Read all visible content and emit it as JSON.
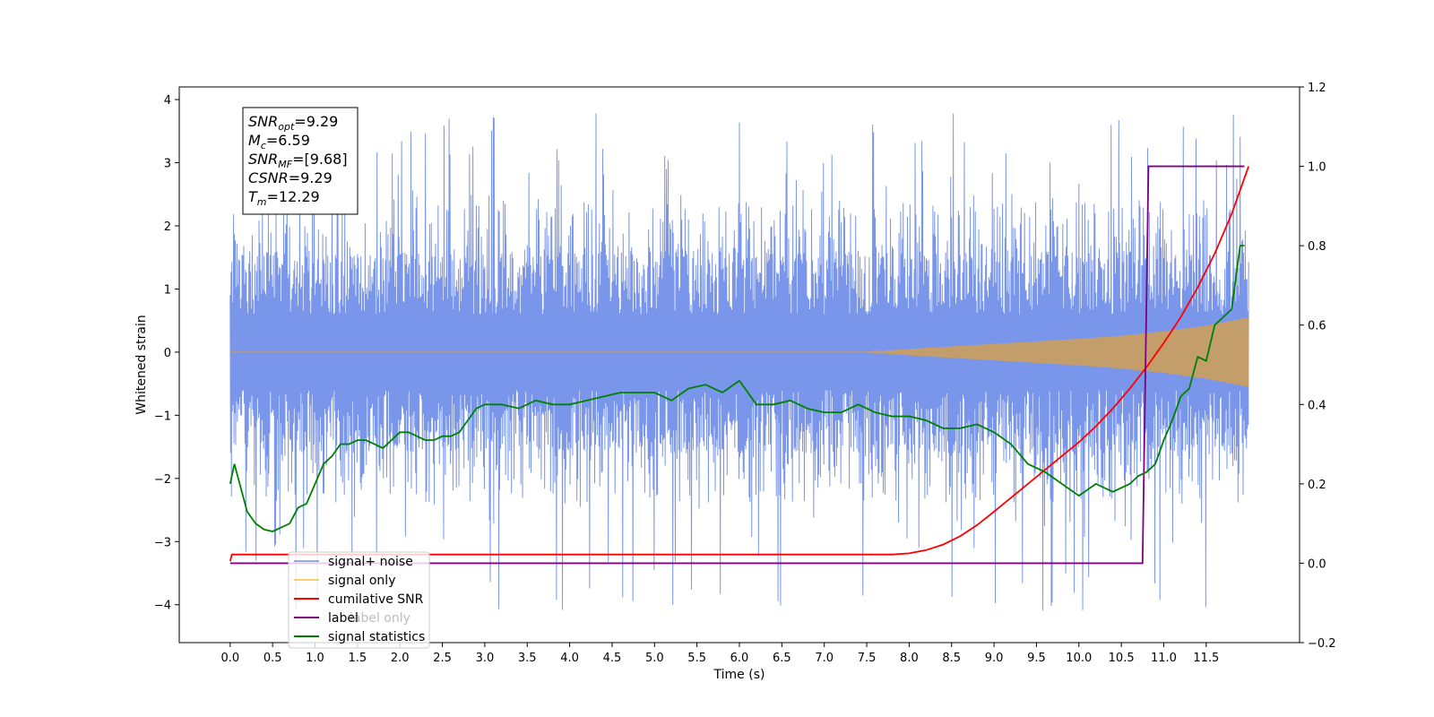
{
  "chart_data": {
    "type": "line",
    "title": "",
    "xlabel": "Time (s)",
    "ylabel": "Whitened strain",
    "xlim": [
      -0.6,
      12.6
    ],
    "ylim": [
      -4.6,
      4.2
    ],
    "y2lim": [
      -0.2,
      1.2
    ],
    "grid": false,
    "legend_position": "lower-left",
    "x_ticks": [
      0.0,
      0.5,
      1.0,
      1.5,
      2.0,
      2.5,
      3.0,
      3.5,
      4.0,
      4.5,
      5.0,
      5.5,
      6.0,
      6.5,
      7.0,
      7.5,
      8.0,
      8.5,
      9.0,
      9.5,
      10.0,
      10.5,
      11.0,
      11.5
    ],
    "x_tick_labels": [
      "0.0",
      "0.5",
      "1.0",
      "1.5",
      "2.0",
      "2.5",
      "3.0",
      "3.5",
      "4.0",
      "4.5",
      "5.0",
      "5.5",
      "6.0",
      "6.5",
      "7.0",
      "7.5",
      "8.0",
      "8.5",
      "9.0",
      "9.5",
      "10.0",
      "10.5",
      "11.0",
      "11.5"
    ],
    "y_ticks": [
      -4,
      -3,
      -2,
      -1,
      0,
      1,
      2,
      3,
      4
    ],
    "y_tick_labels": [
      "−4",
      "−3",
      "−2",
      "−1",
      "0",
      "1",
      "2",
      "3",
      "4"
    ],
    "y2_ticks": [
      -0.2,
      0.0,
      0.2,
      0.4,
      0.6,
      0.8,
      1.0,
      1.2
    ],
    "y2_tick_labels": [
      "−0.2",
      "0.0",
      "0.2",
      "0.4",
      "0.6",
      "0.8",
      "1.0",
      "1.2"
    ],
    "annotation_box": [
      {
        "base": "SNR",
        "sub": "opt",
        "value": "=9.29"
      },
      {
        "base": "M",
        "sub": "c",
        "value": "=6.59"
      },
      {
        "base": "SNR",
        "sub": "MF",
        "value": "=[9.68]"
      },
      {
        "base": "CSNR",
        "sub": "",
        "value": "=9.29"
      },
      {
        "base": "T",
        "sub": "m",
        "value": "=12.29"
      }
    ],
    "series": [
      {
        "name": "signal+ noise",
        "color": "#4169e1",
        "axis": "left",
        "style": "noise",
        "x_range": [
          0.0,
          12.0
        ],
        "band_upper": 1.4,
        "band_lower": -1.4,
        "spike_upper_typical": 2.4,
        "spike_lower_typical": -2.4,
        "spike_upper_max": 3.8,
        "spike_lower_max": -4.1
      },
      {
        "name": "signal only",
        "color": "#ffa500",
        "axis": "left",
        "style": "chirp",
        "x_range": [
          0.0,
          12.0
        ],
        "envelope": {
          "x": [
            0.0,
            7.5,
            8.0,
            8.5,
            9.0,
            9.5,
            10.0,
            10.5,
            11.0,
            11.5,
            12.0
          ],
          "y": [
            0.0,
            0.0,
            0.05,
            0.09,
            0.13,
            0.17,
            0.21,
            0.26,
            0.33,
            0.42,
            0.55
          ]
        }
      },
      {
        "name": "cumilative SNR",
        "color": "#ff0000",
        "axis": "right",
        "x": [
          0.0,
          0.02,
          7.5,
          7.8,
          8.0,
          8.2,
          8.4,
          8.6,
          8.8,
          9.0,
          9.2,
          9.4,
          9.6,
          9.8,
          10.0,
          10.2,
          10.4,
          10.6,
          10.8,
          11.0,
          11.2,
          11.4,
          11.6,
          11.8,
          12.0
        ],
        "y": [
          0.005,
          0.022,
          0.022,
          0.022,
          0.025,
          0.033,
          0.047,
          0.068,
          0.096,
          0.13,
          0.165,
          0.2,
          0.235,
          0.27,
          0.305,
          0.345,
          0.39,
          0.44,
          0.495,
          0.555,
          0.62,
          0.695,
          0.78,
          0.88,
          1.0
        ]
      },
      {
        "name": "label",
        "color": "#800080",
        "axis": "right",
        "x": [
          0.0,
          10.75,
          10.82,
          11.95
        ],
        "y": [
          0.0,
          0.0,
          1.0,
          1.0
        ]
      },
      {
        "name": "signal statistics",
        "color": "#008000",
        "axis": "right",
        "x": [
          0.0,
          0.05,
          0.1,
          0.2,
          0.3,
          0.4,
          0.5,
          0.6,
          0.7,
          0.8,
          0.9,
          1.0,
          1.1,
          1.2,
          1.3,
          1.4,
          1.5,
          1.6,
          1.7,
          1.8,
          1.9,
          2.0,
          2.1,
          2.2,
          2.3,
          2.4,
          2.5,
          2.6,
          2.7,
          2.8,
          2.9,
          3.0,
          3.2,
          3.4,
          3.6,
          3.8,
          4.0,
          4.2,
          4.4,
          4.6,
          4.8,
          5.0,
          5.2,
          5.4,
          5.6,
          5.8,
          6.0,
          6.2,
          6.4,
          6.6,
          6.8,
          7.0,
          7.2,
          7.4,
          7.6,
          7.8,
          8.0,
          8.2,
          8.4,
          8.6,
          8.8,
          9.0,
          9.2,
          9.4,
          9.6,
          9.8,
          10.0,
          10.2,
          10.4,
          10.6,
          10.7,
          10.8,
          10.9,
          11.0,
          11.1,
          11.2,
          11.3,
          11.4,
          11.5,
          11.6,
          11.7,
          11.8,
          11.9,
          11.95
        ],
        "y": [
          0.2,
          0.25,
          0.21,
          0.13,
          0.1,
          0.085,
          0.08,
          0.09,
          0.1,
          0.14,
          0.15,
          0.2,
          0.25,
          0.27,
          0.3,
          0.3,
          0.31,
          0.31,
          0.3,
          0.29,
          0.31,
          0.33,
          0.33,
          0.32,
          0.31,
          0.31,
          0.32,
          0.32,
          0.33,
          0.36,
          0.39,
          0.4,
          0.4,
          0.39,
          0.41,
          0.4,
          0.4,
          0.41,
          0.42,
          0.43,
          0.43,
          0.43,
          0.41,
          0.44,
          0.45,
          0.43,
          0.46,
          0.4,
          0.4,
          0.41,
          0.39,
          0.38,
          0.38,
          0.4,
          0.38,
          0.37,
          0.37,
          0.36,
          0.34,
          0.34,
          0.35,
          0.33,
          0.3,
          0.25,
          0.23,
          0.2,
          0.17,
          0.2,
          0.18,
          0.2,
          0.22,
          0.23,
          0.25,
          0.31,
          0.36,
          0.42,
          0.44,
          0.52,
          0.51,
          0.6,
          0.62,
          0.64,
          0.8,
          0.8
        ]
      }
    ],
    "legend": [
      {
        "label": "signal+ noise",
        "color": "#4169e1"
      },
      {
        "label": "signal only",
        "color": "#ffa500"
      },
      {
        "label": "cumilative SNR",
        "color": "#ff0000"
      },
      {
        "label": "label",
        "color": "#800080"
      },
      {
        "label": "signal statistics",
        "color": "#008000"
      }
    ],
    "legend_hidden_text": "label only"
  }
}
